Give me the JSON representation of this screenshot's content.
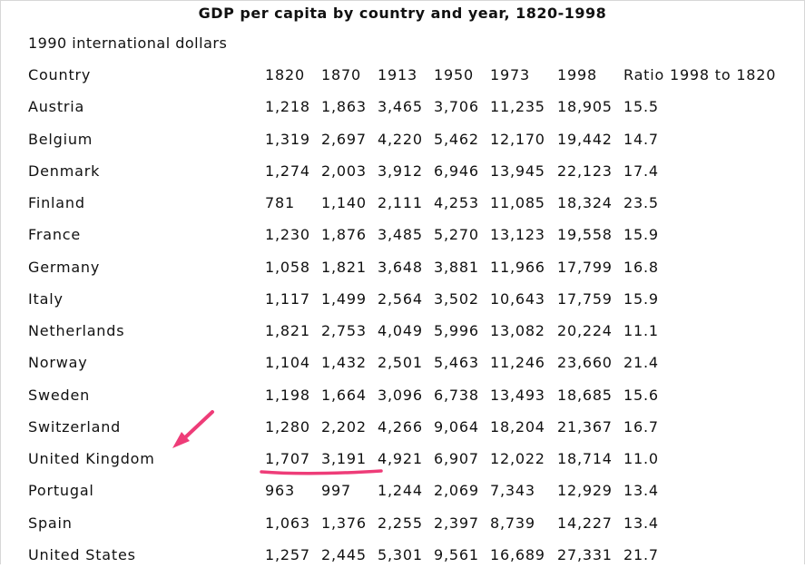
{
  "title": "GDP per capita by country and year, 1820-1998",
  "subtitle": "1990 international dollars",
  "columns": [
    "Country",
    "1820",
    "1870",
    "1913",
    "1950",
    "1973",
    "1998",
    "Ratio 1998 to 1820"
  ],
  "rows": [
    [
      "Austria",
      "1,218",
      "1,863",
      "3,465",
      "3,706",
      "11,235",
      "18,905",
      "15.5"
    ],
    [
      "Belgium",
      "1,319",
      "2,697",
      "4,220",
      "5,462",
      "12,170",
      "19,442",
      "14.7"
    ],
    [
      "Denmark",
      "1,274",
      "2,003",
      "3,912",
      "6,946",
      "13,945",
      "22,123",
      "17.4"
    ],
    [
      "Finland",
      "781",
      "1,140",
      "2,111",
      "4,253",
      "11,085",
      "18,324",
      "23.5"
    ],
    [
      "France",
      "1,230",
      "1,876",
      "3,485",
      "5,270",
      "13,123",
      "19,558",
      "15.9"
    ],
    [
      "Germany",
      "1,058",
      "1,821",
      "3,648",
      "3,881",
      "11,966",
      "17,799",
      "16.8"
    ],
    [
      "Italy",
      "1,117",
      "1,499",
      "2,564",
      "3,502",
      "10,643",
      "17,759",
      "15.9"
    ],
    [
      "Netherlands",
      "1,821",
      "2,753",
      "4,049",
      "5,996",
      "13,082",
      "20,224",
      "11.1"
    ],
    [
      "Norway",
      "1,104",
      "1,432",
      "2,501",
      "5,463",
      "11,246",
      "23,660",
      "21.4"
    ],
    [
      "Sweden",
      "1,198",
      "1,664",
      "3,096",
      "6,738",
      "13,493",
      "18,685",
      "15.6"
    ],
    [
      "Switzerland",
      "1,280",
      "2,202",
      "4,266",
      "9,064",
      "18,204",
      "21,367",
      "16.7"
    ],
    [
      "United Kingdom",
      "1,707",
      "3,191",
      "4,921",
      "6,907",
      "12,022",
      "18,714",
      "11.0"
    ],
    [
      "Portugal",
      "963",
      "997",
      "1,244",
      "2,069",
      "7,343",
      "12,929",
      "13.4"
    ],
    [
      "Spain",
      "1,063",
      "1,376",
      "2,255",
      "2,397",
      "8,739",
      "14,227",
      "13.4"
    ],
    [
      "United States",
      "1,257",
      "2,445",
      "5,301",
      "9,561",
      "16,689",
      "27,331",
      "21.7"
    ]
  ],
  "annotation": {
    "arrow_color": "#ee3c78",
    "underline_color": "#ee3c78"
  }
}
